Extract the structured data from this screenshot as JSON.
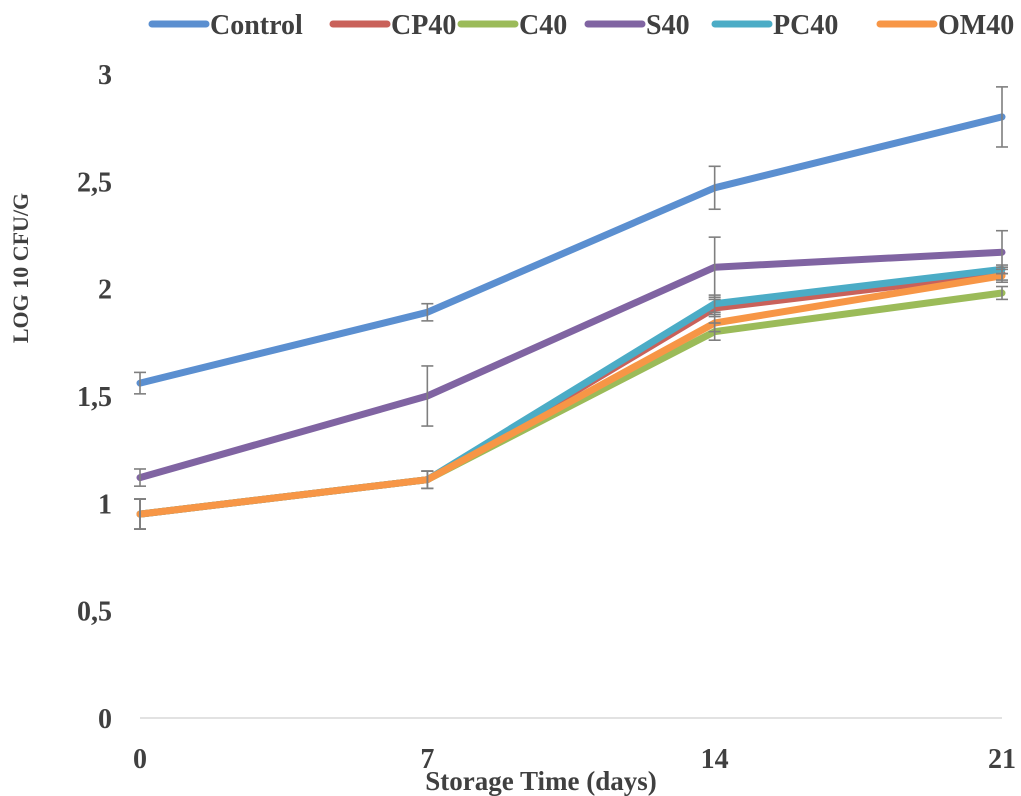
{
  "chart_data": {
    "type": "line",
    "xlabel": "Storage Time (days)",
    "ylabel": "LOG 10 CFU/G",
    "x": [
      0,
      7,
      14,
      21
    ],
    "x_tick_labels": [
      "0",
      "7",
      "14",
      "21"
    ],
    "ylim": [
      0,
      3
    ],
    "y_ticks": [
      0,
      0.5,
      1,
      1.5,
      2,
      2.5,
      3
    ],
    "y_tick_labels": [
      "0",
      "0,5",
      "1",
      "1,5",
      "2",
      "2,5",
      "3"
    ],
    "grid": false,
    "legend_position": "top",
    "series": [
      {
        "name": "Control",
        "color": "#5b8fd0",
        "values": [
          1.56,
          1.89,
          2.47,
          2.8
        ],
        "errors": [
          0.05,
          0.04,
          0.1,
          0.14
        ]
      },
      {
        "name": "CP40",
        "color": "#c9615a",
        "values": [
          0.95,
          1.11,
          1.91,
          2.07
        ],
        "errors": [
          0.07,
          0.04,
          0.04,
          0.03
        ]
      },
      {
        "name": "C40",
        "color": "#9bbb59",
        "values": [
          0.95,
          1.11,
          1.8,
          1.98
        ],
        "errors": [
          0.07,
          0.04,
          0.04,
          0.03
        ]
      },
      {
        "name": "S40",
        "color": "#8064a2",
        "values": [
          1.12,
          1.5,
          2.1,
          2.17
        ],
        "errors": [
          0.04,
          0.14,
          0.14,
          0.1
        ]
      },
      {
        "name": "PC40",
        "color": "#4bacc6",
        "values": [
          0.95,
          1.11,
          1.93,
          2.09
        ],
        "errors": [
          0.07,
          0.04,
          0.04,
          0.02
        ]
      },
      {
        "name": "OM40",
        "color": "#f79646",
        "values": [
          0.95,
          1.11,
          1.84,
          2.06
        ],
        "errors": [
          0.07,
          0.04,
          0.04,
          0.03
        ]
      }
    ]
  }
}
